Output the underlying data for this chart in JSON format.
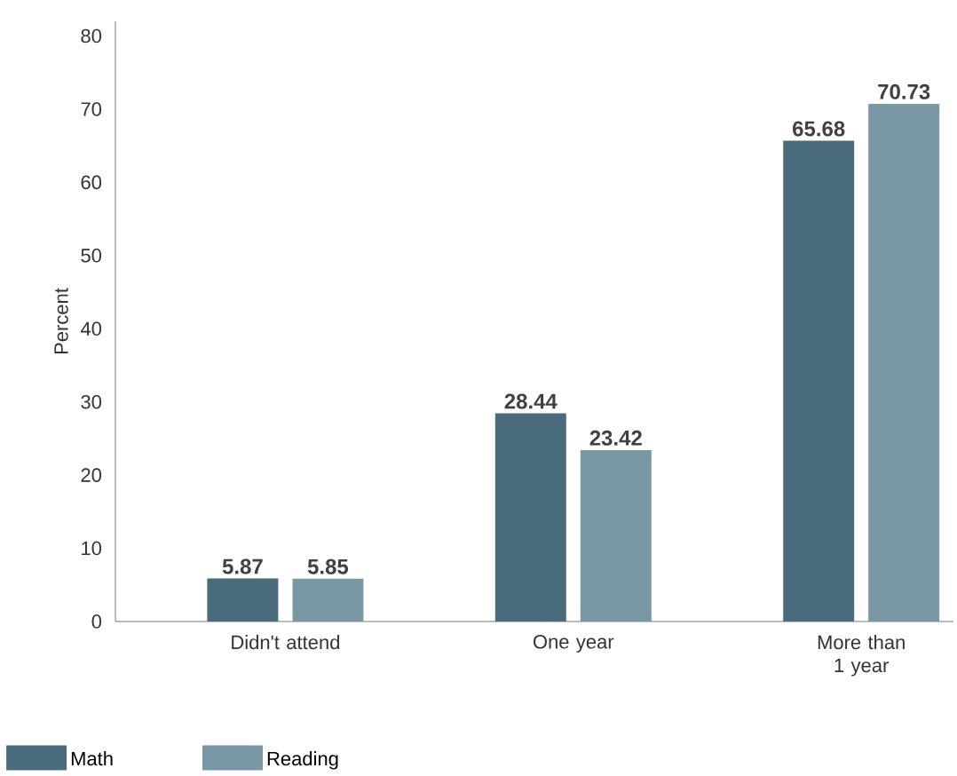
{
  "chart_data": {
    "type": "bar",
    "ylabel": "Percent",
    "categories": [
      "Didn't attend",
      "One year",
      "More than 1 year"
    ],
    "series": [
      {
        "name": "Math",
        "color": "#4a6b7c",
        "values": [
          5.87,
          28.44,
          65.68
        ]
      },
      {
        "name": "Reading",
        "color": "#7a97a5",
        "values": [
          5.85,
          23.42,
          70.73
        ]
      }
    ],
    "ylim": [
      0,
      82
    ],
    "yticks": [
      0,
      10,
      20,
      30,
      40,
      50,
      60,
      70,
      80
    ],
    "data_labels": true,
    "legend": "bottom",
    "grid": false
  }
}
